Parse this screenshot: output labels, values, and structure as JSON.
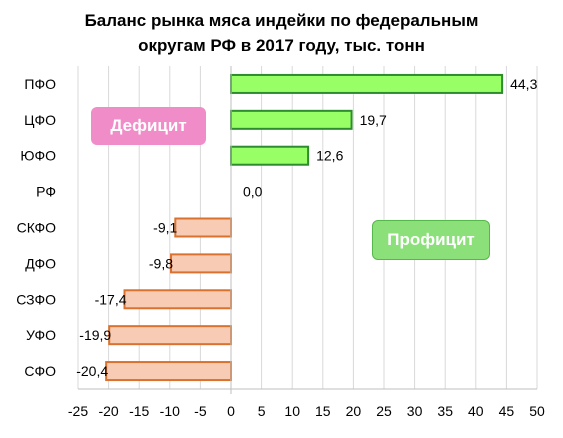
{
  "chart_data": {
    "type": "bar",
    "orientation": "horizontal",
    "title": [
      "Баланс рынка мяса индейки по федеральным",
      "округам РФ в 2017 году, тыс. тонн"
    ],
    "categories": [
      "ПФО",
      "ЦФО",
      "ЮФО",
      "РФ",
      "СКФО",
      "ДФО",
      "СЗФО",
      "УФО",
      "СФО"
    ],
    "values": [
      44.3,
      19.7,
      12.6,
      0.0,
      -9.1,
      -9.8,
      -17.4,
      -19.9,
      -20.4
    ],
    "value_labels": [
      "44,3",
      "19,7",
      "12,6",
      "0,0",
      "-9,1",
      "-9,8",
      "-17,4",
      "-19,9",
      "-20,4"
    ],
    "xlim": [
      -25,
      50
    ],
    "xticks": [
      -25,
      -20,
      -15,
      -10,
      -5,
      0,
      5,
      10,
      15,
      20,
      25,
      30,
      35,
      40,
      45,
      50
    ],
    "grid": "vertical",
    "annotations": {
      "deficit": "Дефицит",
      "surplus": "Профицит"
    },
    "colors": {
      "positive_fill": "#99ff66",
      "positive_stroke": "#2e8b2e",
      "negative_fill": "#f8cbb4",
      "negative_stroke": "#d9722e",
      "grid": "#d9d9d9",
      "deficit_tag": "#f08cc8",
      "surplus_tag": "#8be07a"
    }
  }
}
